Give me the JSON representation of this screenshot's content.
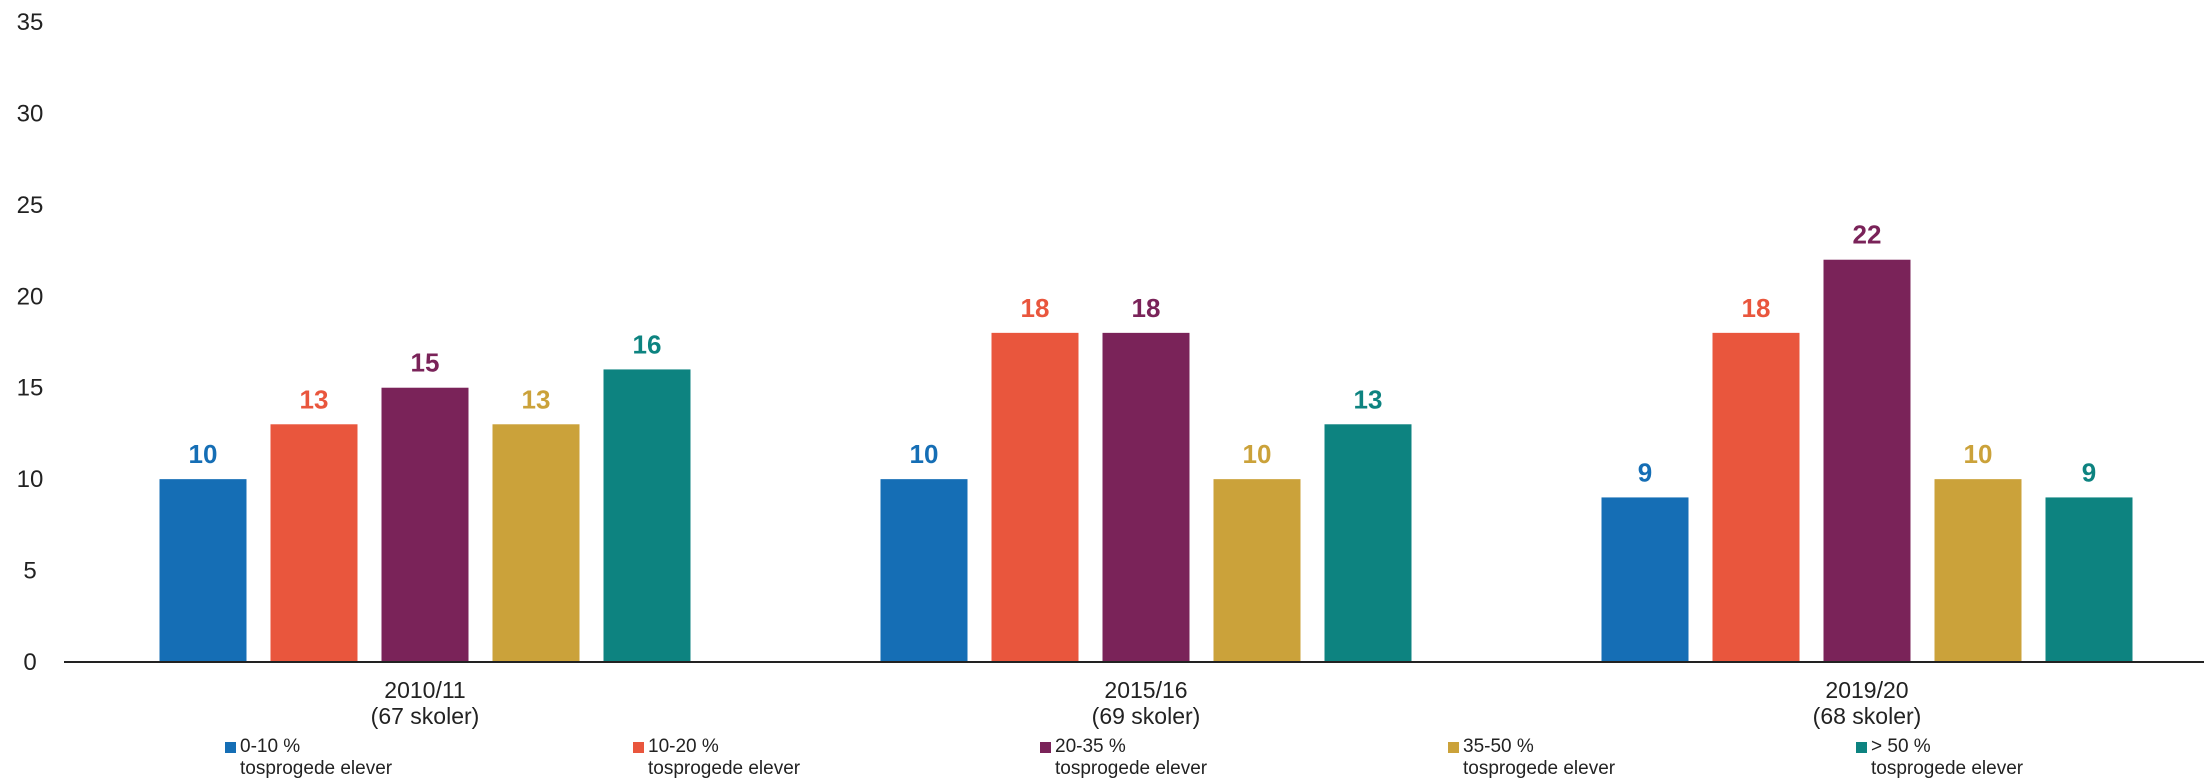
{
  "chart_data": {
    "type": "bar",
    "categories": [
      {
        "line1": "2010/11",
        "line2": "(67 skoler)"
      },
      {
        "line1": "2015/16",
        "line2": "(69 skoler)"
      },
      {
        "line1": "2019/20",
        "line2": "(68 skoler)"
      }
    ],
    "series": [
      {
        "name_line1": "0-10 %",
        "name_line2": "tosprogede elever",
        "color": "#156eb5",
        "values": [
          10,
          10,
          9
        ]
      },
      {
        "name_line1": "10-20 %",
        "name_line2": "tosprogede elever",
        "color": "#e9563d",
        "values": [
          13,
          18,
          18
        ]
      },
      {
        "name_line1": "20-35 %",
        "name_line2": "tosprogede elever",
        "color": "#7a2359",
        "values": [
          15,
          18,
          22
        ]
      },
      {
        "name_line1": "35-50 %",
        "name_line2": "tosprogede elever",
        "color": "#cba23a",
        "values": [
          13,
          10,
          10
        ]
      },
      {
        "name_line1": "> 50 %",
        "name_line2": "tosprogede elever",
        "color": "#0d8380",
        "values": [
          16,
          13,
          9
        ]
      }
    ],
    "ylim": [
      0,
      35
    ],
    "yticks": [
      0,
      5,
      10,
      15,
      20,
      25,
      30,
      35
    ],
    "grid": false,
    "legend_position": "bottom"
  }
}
